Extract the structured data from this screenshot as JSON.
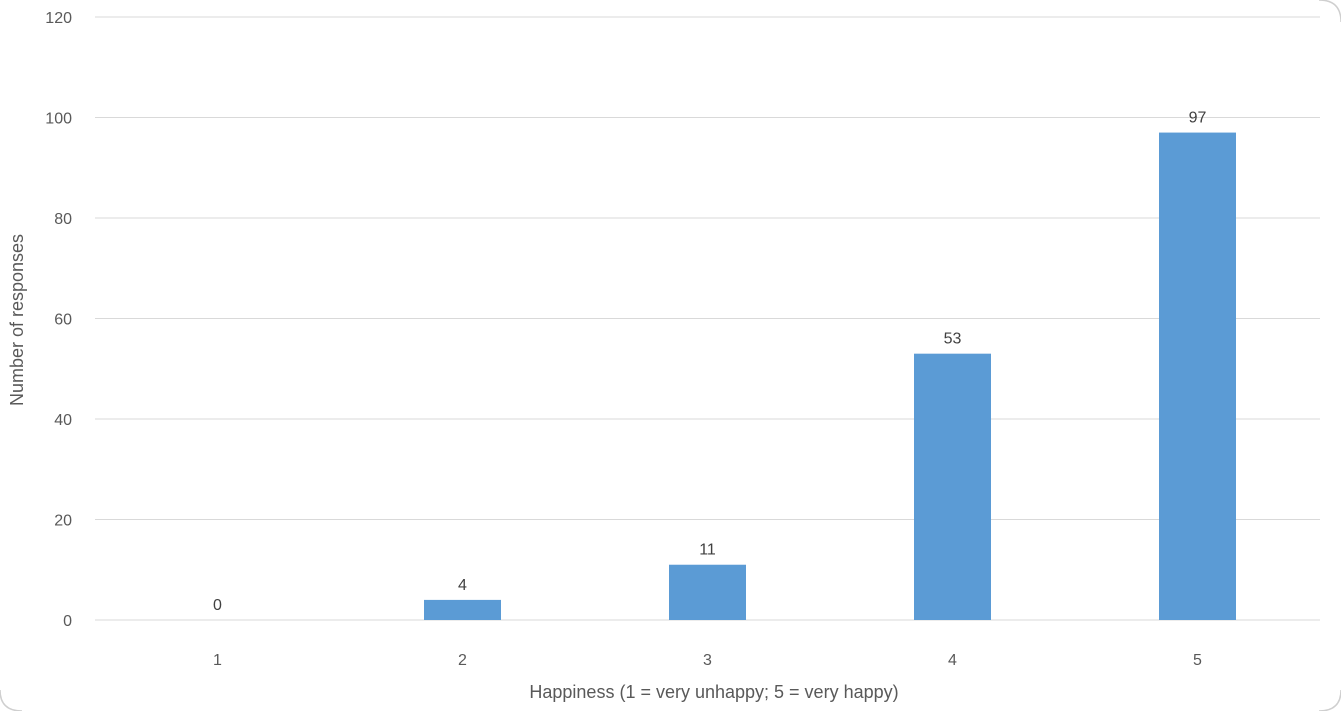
{
  "chart_data": {
    "type": "bar",
    "title": "",
    "xlabel": "Happiness (1 = very unhappy; 5 = very happy)",
    "ylabel": "Number of responses",
    "categories": [
      "1",
      "2",
      "3",
      "4",
      "5"
    ],
    "values": [
      0,
      4,
      11,
      53,
      97
    ],
    "data_labels": [
      "0",
      "4",
      "11",
      "53",
      "97"
    ],
    "yticks": [
      "0",
      "20",
      "40",
      "60",
      "80",
      "100",
      "120"
    ],
    "ylim": [
      0,
      120
    ],
    "grid": true,
    "legend": "none",
    "colors": {
      "bar": "#5b9bd5",
      "grid": "#d9d9d9",
      "frame": "#d0d0d0"
    }
  }
}
